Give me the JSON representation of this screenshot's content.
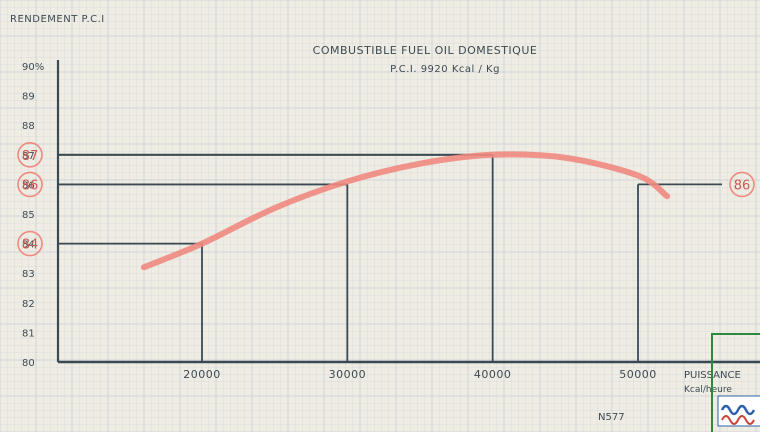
{
  "chart_data": {
    "type": "line",
    "title": "COMBUSTIBLE  FUEL  OIL  DOMESTIQUE",
    "subtitle": "P.C.I.  9920  Kcal / Kg",
    "ylabel": "RENDEMENT  P.C.I",
    "xlabel": "PUISSANCE",
    "xunit": "Kcal/heure",
    "ylim": [
      80,
      90
    ],
    "xlim": [
      0,
      60000
    ],
    "grid": true,
    "y_ticks": [
      "80",
      "81",
      "82",
      "83",
      "84",
      "85",
      "86",
      "87",
      "88",
      "89",
      "90%"
    ],
    "x_ticks": [
      {
        "value": 20000,
        "label": "20000"
      },
      {
        "value": 30000,
        "label": "30000"
      },
      {
        "value": 40000,
        "label": "40000"
      },
      {
        "value": 50000,
        "label": "50000"
      }
    ],
    "series": [
      {
        "color": "#f08a80",
        "x": [
          16000,
          20000,
          25000,
          30000,
          35000,
          40000,
          45000,
          50000,
          52000
        ],
        "y": [
          83.2,
          84.0,
          85.2,
          86.1,
          86.7,
          87.0,
          86.9,
          86.3,
          85.6
        ]
      }
    ],
    "reference_lines": [
      {
        "x": 20000,
        "y": 84
      },
      {
        "x": 30000,
        "y": 86
      },
      {
        "x": 40000,
        "y": 87
      },
      {
        "x": 50000,
        "y": 86
      }
    ],
    "circled_labels": [
      "87",
      "86",
      "84"
    ],
    "right_circled_label": "86",
    "footer_code": "N577",
    "colors": {
      "paper": "#efece4",
      "grid": "#c5cdd2",
      "axis": "#3a4a55",
      "curve": "#f08a80",
      "circle": "#ef8a80"
    }
  }
}
